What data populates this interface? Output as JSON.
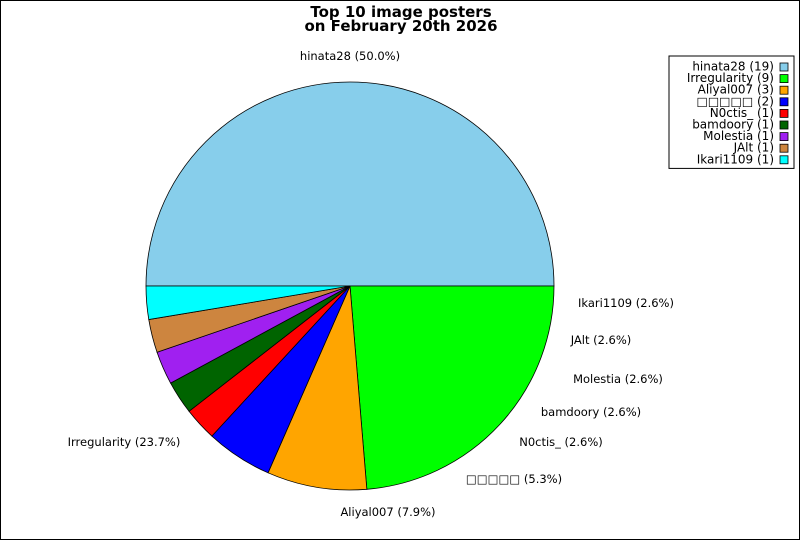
{
  "chart_data": {
    "type": "pie",
    "title": [
      "Top 10 image posters",
      "on February 20th 2026"
    ],
    "slices": [
      {
        "name": "hinata28",
        "count": 19,
        "percent": "50.0%",
        "color": "#87ceeb"
      },
      {
        "name": "Irregularity",
        "count": 9,
        "percent": "23.7%",
        "color": "#00ff00"
      },
      {
        "name": "Aliyal007",
        "count": 3,
        "percent": "7.9%",
        "color": "#ffa500"
      },
      {
        "name": "□□□□□",
        "count": 2,
        "percent": "5.3%",
        "color": "#0000ff"
      },
      {
        "name": "N0ctis_",
        "count": 1,
        "percent": "2.6%",
        "color": "#ff0000"
      },
      {
        "name": "bamdoory",
        "count": 1,
        "percent": "2.6%",
        "color": "#006400"
      },
      {
        "name": "Molestia",
        "count": 1,
        "percent": "2.6%",
        "color": "#a020f0"
      },
      {
        "name": "JAlt",
        "count": 1,
        "percent": "2.6%",
        "color": "#cd853f"
      },
      {
        "name": "Ikari1109",
        "count": 1,
        "percent": "2.6%",
        "color": "#00ffff"
      }
    ],
    "legend_placement": "top-right",
    "start_angle": "9 o'clock, clockwise"
  }
}
